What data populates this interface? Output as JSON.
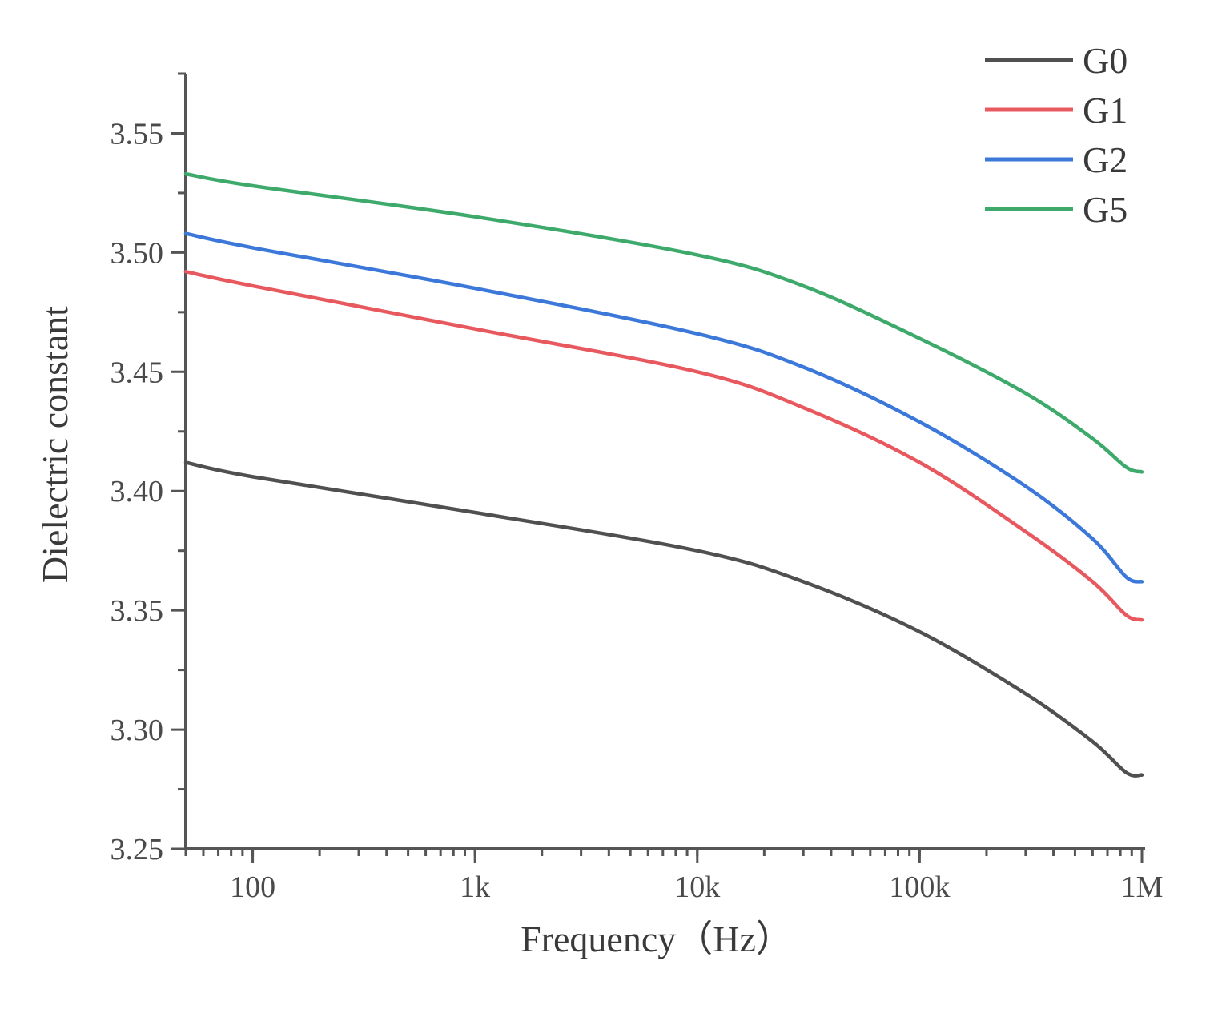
{
  "chart_data": {
    "type": "line",
    "title": "",
    "xlabel": "Frequency（Hz）",
    "ylabel": "Dielectric constant",
    "xscale": "log",
    "xlim": [
      50,
      1000000
    ],
    "ylim": [
      3.25,
      3.575
    ],
    "x_ticks": [
      {
        "value": 100,
        "label": "100"
      },
      {
        "value": 1000,
        "label": "1k"
      },
      {
        "value": 10000,
        "label": "10k"
      },
      {
        "value": 100000,
        "label": "100k"
      },
      {
        "value": 1000000,
        "label": "1M"
      }
    ],
    "y_ticks": [
      {
        "value": 3.25,
        "label": "3.25"
      },
      {
        "value": 3.3,
        "label": "3.30"
      },
      {
        "value": 3.35,
        "label": "3.35"
      },
      {
        "value": 3.4,
        "label": "3.40"
      },
      {
        "value": 3.45,
        "label": "3.45"
      },
      {
        "value": 3.5,
        "label": "3.50"
      },
      {
        "value": 3.55,
        "label": "3.55"
      }
    ],
    "legend_position": "top-right",
    "grid": false,
    "series": [
      {
        "name": "G0",
        "color": "#505050",
        "x": [
          50,
          100,
          1000,
          10000,
          30000,
          100000,
          300000,
          600000,
          850000,
          1000000
        ],
        "values": [
          3.412,
          3.406,
          3.391,
          3.375,
          3.362,
          3.341,
          3.315,
          3.295,
          3.282,
          3.281
        ]
      },
      {
        "name": "G1",
        "color": "#e8595f",
        "x": [
          50,
          100,
          1000,
          10000,
          30000,
          100000,
          300000,
          600000,
          850000,
          1000000
        ],
        "values": [
          3.492,
          3.486,
          3.468,
          3.45,
          3.435,
          3.412,
          3.383,
          3.362,
          3.348,
          3.346
        ]
      },
      {
        "name": "G2",
        "color": "#3b78d9",
        "x": [
          50,
          100,
          1000,
          10000,
          30000,
          100000,
          300000,
          600000,
          850000,
          1000000
        ],
        "values": [
          3.508,
          3.502,
          3.485,
          3.466,
          3.452,
          3.429,
          3.402,
          3.38,
          3.364,
          3.362
        ]
      },
      {
        "name": "G5",
        "color": "#3daa6b",
        "x": [
          50,
          100,
          1000,
          10000,
          30000,
          100000,
          300000,
          600000,
          850000,
          1000000
        ],
        "values": [
          3.533,
          3.528,
          3.515,
          3.499,
          3.486,
          3.464,
          3.441,
          3.422,
          3.41,
          3.408
        ]
      }
    ]
  }
}
